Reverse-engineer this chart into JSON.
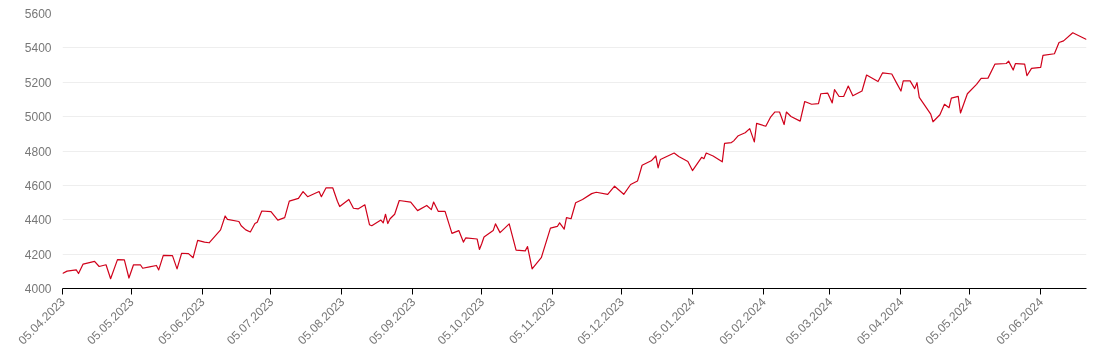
{
  "chart_data": {
    "type": "line",
    "grid": "y",
    "xlim": [
      "2023-04-05",
      "2024-06-25"
    ],
    "ylim": [
      4000,
      5600
    ],
    "yticks": [
      4000,
      4200,
      4400,
      4600,
      4800,
      5000,
      5200,
      5400,
      5600
    ],
    "xticks": [
      {
        "value": "2023-04-05",
        "label": "05.04.2023"
      },
      {
        "value": "2023-05-05",
        "label": "05.05.2023"
      },
      {
        "value": "2023-06-05",
        "label": "05.06.2023"
      },
      {
        "value": "2023-07-05",
        "label": "05.07.2023"
      },
      {
        "value": "2023-08-05",
        "label": "05.08.2023"
      },
      {
        "value": "2023-09-05",
        "label": "05.09.2023"
      },
      {
        "value": "2023-10-05",
        "label": "05.10.2023"
      },
      {
        "value": "2023-11-05",
        "label": "05.11.2023"
      },
      {
        "value": "2023-12-05",
        "label": "05.12.2023"
      },
      {
        "value": "2024-01-05",
        "label": "05.01.2024"
      },
      {
        "value": "2024-02-05",
        "label": "05.02.2024"
      },
      {
        "value": "2024-03-05",
        "label": "05.03.2024"
      },
      {
        "value": "2024-04-05",
        "label": "05.04.2024"
      },
      {
        "value": "2024-05-05",
        "label": "05.05.2024"
      },
      {
        "value": "2024-06-05",
        "label": "05.06.2024"
      }
    ],
    "series": [
      {
        "color": "#d0021b",
        "x": [
          "2023-04-05",
          "2023-04-07",
          "2023-04-11",
          "2023-04-12",
          "2023-04-14",
          "2023-04-19",
          "2023-04-21",
          "2023-04-24",
          "2023-04-26",
          "2023-04-29",
          "2023-05-02",
          "2023-05-04",
          "2023-05-06",
          "2023-05-09",
          "2023-05-10",
          "2023-05-13",
          "2023-05-16",
          "2023-05-17",
          "2023-05-19",
          "2023-05-23",
          "2023-05-25",
          "2023-05-27",
          "2023-05-30",
          "2023-06-01",
          "2023-06-03",
          "2023-06-06",
          "2023-06-08",
          "2023-06-13",
          "2023-06-15",
          "2023-06-16",
          "2023-06-21",
          "2023-06-22",
          "2023-06-24",
          "2023-06-26",
          "2023-06-28",
          "2023-06-29",
          "2023-07-01",
          "2023-07-05",
          "2023-07-08",
          "2023-07-11",
          "2023-07-13",
          "2023-07-17",
          "2023-07-19",
          "2023-07-21",
          "2023-07-26",
          "2023-07-27",
          "2023-07-29",
          "2023-08-01",
          "2023-08-03",
          "2023-08-04",
          "2023-08-08",
          "2023-08-10",
          "2023-08-12",
          "2023-08-15",
          "2023-08-17",
          "2023-08-18",
          "2023-08-22",
          "2023-08-23",
          "2023-08-24",
          "2023-08-25",
          "2023-08-26",
          "2023-08-28",
          "2023-08-30",
          "2023-09-04",
          "2023-09-07",
          "2023-09-11",
          "2023-09-13",
          "2023-09-14",
          "2023-09-16",
          "2023-09-19",
          "2023-09-22",
          "2023-09-25",
          "2023-09-27",
          "2023-09-28",
          "2023-10-03",
          "2023-10-04",
          "2023-10-05",
          "2023-10-06",
          "2023-10-10",
          "2023-10-11",
          "2023-10-13",
          "2023-10-17",
          "2023-10-20",
          "2023-10-24",
          "2023-10-25",
          "2023-10-27",
          "2023-10-31",
          "2023-11-04",
          "2023-11-07",
          "2023-11-08",
          "2023-11-10",
          "2023-11-11",
          "2023-11-13",
          "2023-11-15",
          "2023-11-18",
          "2023-11-22",
          "2023-11-24",
          "2023-11-29",
          "2023-12-02",
          "2023-12-06",
          "2023-12-09",
          "2023-12-12",
          "2023-12-14",
          "2023-12-18",
          "2023-12-20",
          "2023-12-21",
          "2023-12-22",
          "2023-12-28",
          "2023-12-30",
          "2024-01-03",
          "2024-01-05",
          "2024-01-09",
          "2024-01-10",
          "2024-01-11",
          "2024-01-14",
          "2024-01-18",
          "2024-01-19",
          "2024-01-22",
          "2024-01-23",
          "2024-01-25",
          "2024-01-28",
          "2024-01-30",
          "2024-02-01",
          "2024-02-02",
          "2024-02-06",
          "2024-02-08",
          "2024-02-10",
          "2024-02-12",
          "2024-02-14",
          "2024-02-15",
          "2024-02-17",
          "2024-02-21",
          "2024-02-23",
          "2024-02-26",
          "2024-02-29",
          "2024-03-01",
          "2024-03-04",
          "2024-03-06",
          "2024-03-07",
          "2024-03-09",
          "2024-03-11",
          "2024-03-13",
          "2024-03-15",
          "2024-03-19",
          "2024-03-21",
          "2024-03-26",
          "2024-03-28",
          "2024-04-01",
          "2024-04-03",
          "2024-04-05",
          "2024-04-06",
          "2024-04-09",
          "2024-04-11",
          "2024-04-12",
          "2024-04-13",
          "2024-04-18",
          "2024-04-19",
          "2024-04-22",
          "2024-04-24",
          "2024-04-26",
          "2024-04-27",
          "2024-04-30",
          "2024-05-01",
          "2024-05-04",
          "2024-05-08",
          "2024-05-10",
          "2024-05-13",
          "2024-05-16",
          "2024-05-21",
          "2024-05-22",
          "2024-05-24",
          "2024-05-25",
          "2024-05-29",
          "2024-05-30",
          "2024-06-01",
          "2024-06-05",
          "2024-06-06",
          "2024-06-11",
          "2024-06-13",
          "2024-06-15",
          "2024-06-19",
          "2024-06-25"
        ],
        "values": [
          4087,
          4101,
          4108,
          4087,
          4142,
          4158,
          4128,
          4138,
          4057,
          4168,
          4166,
          4061,
          4138,
          4138,
          4118,
          4126,
          4134,
          4108,
          4193,
          4191,
          4114,
          4205,
          4203,
          4179,
          4280,
          4270,
          4266,
          4341,
          4422,
          4402,
          4390,
          4365,
          4341,
          4329,
          4378,
          4386,
          4451,
          4447,
          4398,
          4412,
          4508,
          4524,
          4564,
          4534,
          4564,
          4534,
          4585,
          4585,
          4508,
          4477,
          4518,
          4467,
          4463,
          4487,
          4371,
          4365,
          4398,
          4382,
          4432,
          4378,
          4406,
          4432,
          4512,
          4503,
          4453,
          4483,
          4459,
          4503,
          4449,
          4449,
          4321,
          4337,
          4270,
          4294,
          4288,
          4227,
          4260,
          4300,
          4337,
          4376,
          4325,
          4376,
          4223,
          4219,
          4244,
          4114,
          4179,
          4351,
          4361,
          4382,
          4345,
          4412,
          4406,
          4499,
          4518,
          4552,
          4560,
          4548,
          4595,
          4548,
          4605,
          4625,
          4717,
          4743,
          4771,
          4702,
          4751,
          4788,
          4768,
          4739,
          4686,
          4763,
          4755,
          4788,
          4771,
          4737,
          4844,
          4849,
          4859,
          4889,
          4906,
          4930,
          4853,
          4961,
          4944,
          4995,
          5027,
          5027,
          4954,
          5027,
          5001,
          4974,
          5088,
          5072,
          5076,
          5133,
          5137,
          5080,
          5157,
          5117,
          5117,
          5178,
          5121,
          5149,
          5242,
          5204,
          5255,
          5248,
          5198,
          5149,
          5208,
          5208,
          5163,
          5198,
          5112,
          5015,
          4970,
          5011,
          5072,
          5052,
          5108,
          5118,
          5021,
          5133,
          5188,
          5222,
          5224,
          5305,
          5309,
          5323,
          5271,
          5309,
          5305,
          5238,
          5281,
          5287,
          5356,
          5366,
          5431,
          5441,
          5488,
          5449
        ]
      }
    ]
  }
}
